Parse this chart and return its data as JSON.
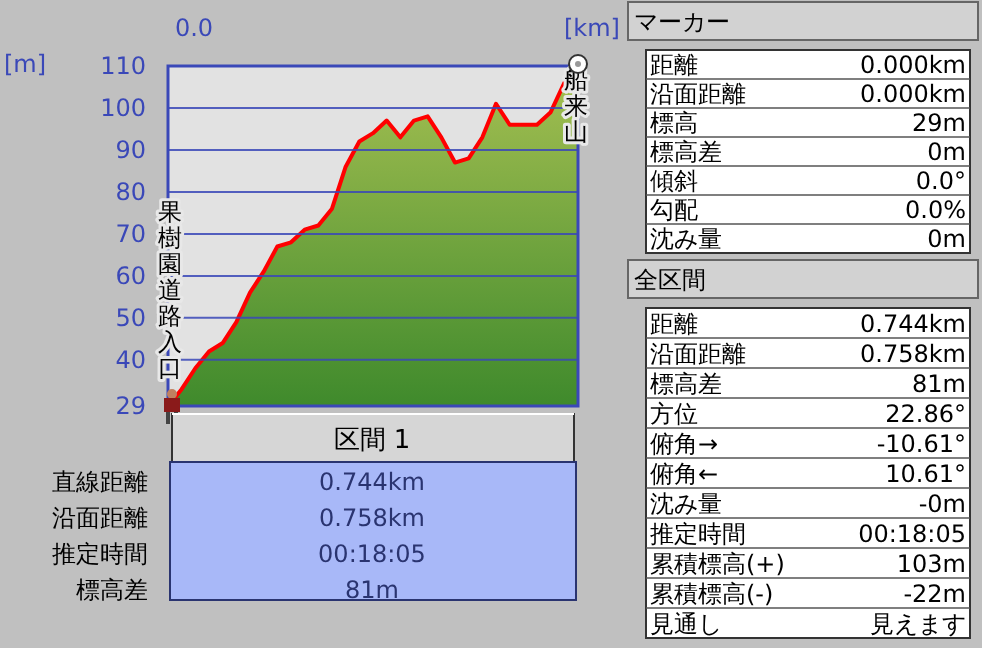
{
  "chart_data": [
    {
      "type": "area",
      "xlabel": "[km]",
      "ylabel": "[m]",
      "categories": [
        null,
        null,
        null,
        null,
        null,
        null,
        null,
        null,
        null,
        null,
        null,
        null,
        null,
        null,
        null,
        null,
        null,
        null,
        null,
        null,
        null,
        null,
        null,
        null,
        null,
        null,
        null,
        null,
        null,
        null,
        null
      ],
      "series": [
        {
          "color": "#ff0000",
          "values": [
            29,
            33,
            38,
            42,
            44,
            49,
            56,
            61,
            67,
            68,
            71,
            72,
            76,
            86,
            92,
            94,
            97,
            93,
            97,
            98,
            93,
            87,
            88,
            93,
            101,
            96,
            96,
            96,
            99,
            106,
            110
          ]
        }
      ],
      "ylim": [
        29,
        110
      ],
      "yticks": [
        29,
        40,
        50,
        60,
        70,
        80,
        90,
        100,
        110
      ],
      "grid": "y",
      "annotations": [
        "果樹園道路入口",
        "船来山",
        "0.0"
      ]
    },
    {
      "type": "other",
      "title": "区間 1",
      "annotations": [
        "直線距離",
        "0.744km",
        "沿面距離",
        "0.758km",
        "推定時間",
        "00:18:05",
        "標高差",
        "81m"
      ]
    },
    {
      "type": "other",
      "title": "マーカー",
      "annotations": [
        "距離",
        "0.000km",
        "沿面距離",
        "0.000km",
        "標高",
        "29m",
        "標高差",
        "0m",
        "傾斜",
        "0.0°",
        "勾配",
        "0.0%",
        "沈み量",
        "0m"
      ]
    },
    {
      "type": "other",
      "title": "全区間",
      "annotations": [
        "距離",
        "0.744km",
        "沿面距離",
        "0.758km",
        "標高差",
        "81m",
        "方位",
        "22.86°",
        "俯角→",
        "-10.61°",
        "俯角←",
        "10.61°",
        "沈み量",
        "-0m",
        "推定時間",
        "00:18:05",
        "累積標高(+)",
        "103m",
        "累積標高(-)",
        "-22m",
        "見通し",
        "見えます"
      ]
    }
  ]
}
